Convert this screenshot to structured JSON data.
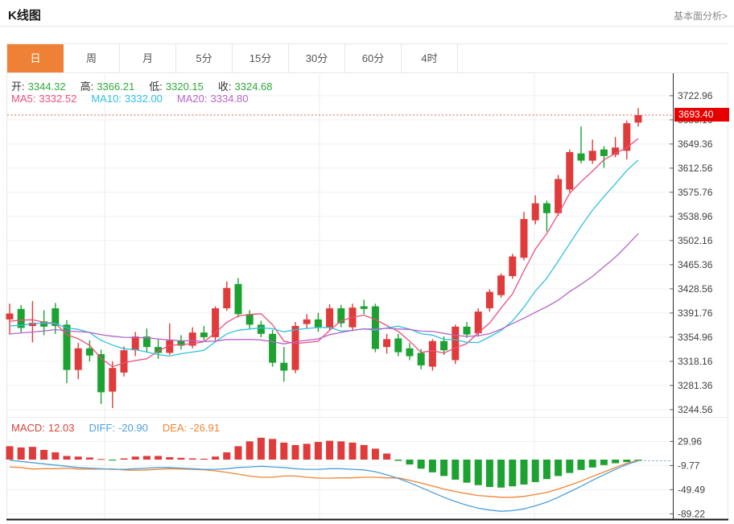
{
  "page": {
    "title": "K线图",
    "analysis_link": "基本面分析>"
  },
  "tabs": [
    {
      "id": "day",
      "label": "日",
      "active": true
    },
    {
      "id": "week",
      "label": "周",
      "active": false
    },
    {
      "id": "month",
      "label": "月",
      "active": false
    },
    {
      "id": "5min",
      "label": "5分",
      "active": false
    },
    {
      "id": "15min",
      "label": "15分",
      "active": false
    },
    {
      "id": "30min",
      "label": "30分",
      "active": false
    },
    {
      "id": "60min",
      "label": "60分",
      "active": false
    },
    {
      "id": "4hour",
      "label": "4时",
      "active": false
    }
  ],
  "colors": {
    "up": "#e03b3b",
    "down": "#1da232",
    "ma5": "#ec4f79",
    "ma10": "#2fc1dd",
    "ma20": "#b565c8",
    "diff": "#4d9fdb",
    "dea": "#ef8532",
    "badge": "#e60000",
    "dotted_price_line": "#f4564d",
    "tab_active": "#ef8137",
    "ohlc_value": "#2eaa3a",
    "grid": "#f0f0f0",
    "axis": "#333333",
    "macd_legend_red": "#d9433b"
  },
  "legend": {
    "ohlc": [
      {
        "label": "开:",
        "value": "3344.32"
      },
      {
        "label": "高:",
        "value": "3366.21"
      },
      {
        "label": "低:",
        "value": "3320.15"
      },
      {
        "label": "收:",
        "value": "3324.68"
      }
    ],
    "ma": [
      {
        "label": "MA5:",
        "value": "3332.52",
        "color": "#ec4f79"
      },
      {
        "label": "MA10:",
        "value": "3332.00",
        "color": "#2fc1dd"
      },
      {
        "label": "MA20:",
        "value": "3334.80",
        "color": "#b565c8"
      }
    ],
    "macd": [
      {
        "label": "MACD:",
        "value": "12.03",
        "color": "#d9433b"
      },
      {
        "label": "DIFF:",
        "value": "-20.90",
        "color": "#4d9fdb"
      },
      {
        "label": "DEA:",
        "value": "-26.91",
        "color": "#ef8532"
      }
    ]
  },
  "price_badge": "3693.40",
  "chart_data": {
    "type": "candlestick",
    "title": "K线图 (daily candlestick with MA5/MA10/MA20 and MACD sub-panel)",
    "main": {
      "y_ticks": [
        3722.96,
        3686.16,
        3649.36,
        3612.56,
        3575.76,
        3538.96,
        3502.16,
        3465.36,
        3428.56,
        3391.76,
        3354.96,
        3318.16,
        3281.36,
        3244.56
      ],
      "current_price": 3693.4,
      "ma_periods": [
        5,
        10,
        20
      ],
      "seed_closes": [
        3320,
        3335,
        3350,
        3340,
        3330,
        3345,
        3360,
        3350,
        3340,
        3355,
        3370,
        3360,
        3350,
        3365,
        3380,
        3370,
        3360,
        3375,
        3390,
        3380
      ],
      "candles_ohlc": [
        [
          3382,
          3406,
          3359,
          3391
        ],
        [
          3398,
          3404,
          3362,
          3369
        ],
        [
          3372,
          3410,
          3347,
          3377
        ],
        [
          3379,
          3396,
          3358,
          3371
        ],
        [
          3399,
          3407,
          3360,
          3372
        ],
        [
          3374,
          3381,
          3285,
          3305
        ],
        [
          3305,
          3346,
          3291,
          3338
        ],
        [
          3338,
          3350,
          3318,
          3327
        ],
        [
          3329,
          3336,
          3253,
          3271
        ],
        [
          3272,
          3318,
          3247,
          3308
        ],
        [
          3301,
          3341,
          3295,
          3335
        ],
        [
          3335,
          3363,
          3326,
          3356
        ],
        [
          3356,
          3368,
          3332,
          3340
        ],
        [
          3340,
          3352,
          3322,
          3331
        ],
        [
          3331,
          3376,
          3328,
          3350
        ],
        [
          3350,
          3358,
          3336,
          3342
        ],
        [
          3342,
          3370,
          3338,
          3362
        ],
        [
          3362,
          3372,
          3350,
          3355
        ],
        [
          3355,
          3402,
          3350,
          3399
        ],
        [
          3399,
          3440,
          3395,
          3430
        ],
        [
          3436,
          3445,
          3385,
          3390
        ],
        [
          3390,
          3396,
          3368,
          3374
        ],
        [
          3374,
          3380,
          3355,
          3360
        ],
        [
          3360,
          3366,
          3310,
          3316
        ],
        [
          3316,
          3340,
          3287,
          3304
        ],
        [
          3305,
          3378,
          3300,
          3372
        ],
        [
          3375,
          3390,
          3368,
          3382
        ],
        [
          3382,
          3392,
          3363,
          3370
        ],
        [
          3370,
          3405,
          3366,
          3399
        ],
        [
          3399,
          3404,
          3370,
          3376
        ],
        [
          3370,
          3406,
          3364,
          3400
        ],
        [
          3402,
          3412,
          3390,
          3398
        ],
        [
          3402,
          3406,
          3332,
          3337
        ],
        [
          3340,
          3360,
          3330,
          3352
        ],
        [
          3353,
          3360,
          3326,
          3332
        ],
        [
          3338,
          3346,
          3320,
          3326
        ],
        [
          3331,
          3337,
          3306,
          3312
        ],
        [
          3310,
          3352,
          3304,
          3349
        ],
        [
          3349,
          3356,
          3328,
          3335
        ],
        [
          3320,
          3374,
          3314,
          3371
        ],
        [
          3371,
          3378,
          3354,
          3359
        ],
        [
          3361,
          3399,
          3356,
          3394
        ],
        [
          3399,
          3428,
          3394,
          3424
        ],
        [
          3419,
          3452,
          3415,
          3449
        ],
        [
          3448,
          3482,
          3444,
          3478
        ],
        [
          3476,
          3546,
          3472,
          3535
        ],
        [
          3533,
          3571,
          3527,
          3559
        ],
        [
          3559,
          3563,
          3516,
          3544
        ],
        [
          3544,
          3602,
          3540,
          3596
        ],
        [
          3580,
          3641,
          3576,
          3637
        ],
        [
          3635,
          3676,
          3620,
          3624
        ],
        [
          3624,
          3656,
          3619,
          3639
        ],
        [
          3641,
          3646,
          3613,
          3631
        ],
        [
          3633,
          3660,
          3629,
          3644
        ],
        [
          3639,
          3685,
          3626,
          3681
        ],
        [
          3682,
          3704,
          3676,
          3693.4
        ]
      ]
    },
    "macd": {
      "y_ticks": [
        29.96,
        -9.77,
        -49.49,
        -89.22
      ],
      "hist": [
        22,
        20,
        21,
        16,
        12,
        6,
        5,
        3.5,
        1,
        -1.5,
        2,
        5,
        6,
        6,
        4,
        3,
        2,
        1.5,
        5,
        12,
        22,
        30,
        36,
        34,
        28,
        24,
        26,
        29,
        31,
        30,
        28,
        24,
        18,
        10,
        -2,
        -8,
        -15,
        -21,
        -27,
        -33,
        -38,
        -42,
        -45,
        -46,
        -44,
        -41,
        -37,
        -32,
        -27,
        -22,
        -17,
        -13,
        -9,
        -6,
        -4,
        -2
      ],
      "diff": [
        -1,
        -3,
        -5,
        -7,
        -9,
        -11,
        -13,
        -14,
        -15,
        -16,
        -16,
        -15,
        -14,
        -13,
        -13,
        -14,
        -15,
        -16,
        -16,
        -15,
        -13,
        -12,
        -11,
        -12,
        -13,
        -15,
        -16,
        -16,
        -15,
        -15,
        -16,
        -17,
        -20,
        -25,
        -31,
        -38,
        -46,
        -54,
        -62,
        -69,
        -75,
        -80,
        -83,
        -85,
        -84,
        -81,
        -76,
        -70,
        -62,
        -53,
        -44,
        -34,
        -25,
        -16,
        -8,
        -2
      ],
      "dea": [
        -12,
        -13,
        -15.5,
        -15,
        -15,
        -14,
        -15.5,
        -15.75,
        -15.5,
        -15.25,
        -17,
        -17.5,
        -17,
        -16,
        -15,
        -15.5,
        -16,
        -16.75,
        -18.5,
        -21,
        -24,
        -27,
        -29,
        -29,
        -27,
        -27,
        -29,
        -30.5,
        -30.5,
        -30,
        -30,
        -29,
        -29,
        -30,
        -30,
        -34,
        -38.5,
        -43.5,
        -48.5,
        -52.5,
        -56,
        -59,
        -60.5,
        -62,
        -62,
        -60.5,
        -57.5,
        -54,
        -48.5,
        -42,
        -35.5,
        -27.5,
        -20.5,
        -13,
        -6,
        -1
      ]
    }
  }
}
